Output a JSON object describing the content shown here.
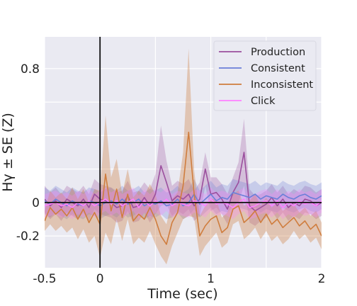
{
  "chart_data": {
    "type": "line",
    "xlabel": "Time (sec)",
    "ylabel": "Hγ ± SE (Z)",
    "xlim": [
      -0.5,
      2
    ],
    "ylim": [
      -0.39,
      0.99
    ],
    "xticks": [
      -0.5,
      0,
      1,
      2
    ],
    "xtick_labels": [
      "-0.5",
      "0",
      "1",
      "2"
    ],
    "xgrid": [
      -0.5,
      0,
      0.5,
      1,
      1.5,
      2
    ],
    "yticks": [
      -0.2,
      0,
      0.8
    ],
    "ytick_labels": [
      "-0.2",
      "0",
      "0.8"
    ],
    "ygrid": [
      -0.2,
      0,
      0.2,
      0.4,
      0.6,
      0.8
    ],
    "grid": true,
    "legend_position": "top-right",
    "vline_x": 0,
    "hline_y": 0,
    "x": [
      -0.5,
      -0.45,
      -0.4,
      -0.35,
      -0.3,
      -0.25,
      -0.2,
      -0.15,
      -0.1,
      -0.05,
      0,
      0.05,
      0.1,
      0.15,
      0.2,
      0.25,
      0.3,
      0.35,
      0.4,
      0.45,
      0.5,
      0.55,
      0.6,
      0.65,
      0.7,
      0.75,
      0.8,
      0.85,
      0.9,
      0.95,
      1,
      1.05,
      1.1,
      1.15,
      1.2,
      1.25,
      1.3,
      1.35,
      1.4,
      1.45,
      1.5,
      1.55,
      1.6,
      1.65,
      1.7,
      1.75,
      1.8,
      1.85,
      1.9,
      1.95,
      2
    ],
    "series": [
      {
        "name": "Production",
        "color": "#9B4F9E",
        "values": [
          0.02,
          -0.02,
          0.01,
          -0.03,
          0.02,
          0.0,
          -0.02,
          0.02,
          -0.03,
          0.05,
          0.02,
          0.01,
          0.0,
          -0.03,
          -0.02,
          0.04,
          -0.03,
          -0.02,
          0.03,
          -0.02,
          0.05,
          0.22,
          0.12,
          0.01,
          0.04,
          0.02,
          0.05,
          -0.02,
          0.02,
          0.2,
          0.05,
          0.06,
          0.02,
          -0.04,
          0.06,
          0.12,
          0.3,
          -0.02,
          -0.05,
          -0.03,
          -0.01,
          0.03,
          -0.02,
          0.02,
          -0.03,
          0.0,
          -0.02,
          0.02,
          0.01,
          -0.02,
          0.0
        ],
        "se": [
          0.08,
          0.08,
          0.08,
          0.08,
          0.08,
          0.08,
          0.08,
          0.08,
          0.08,
          0.09,
          0.09,
          0.09,
          0.09,
          0.09,
          0.09,
          0.09,
          0.09,
          0.09,
          0.09,
          0.1,
          0.12,
          0.24,
          0.13,
          0.09,
          0.09,
          0.09,
          0.09,
          0.09,
          0.1,
          0.1,
          0.1,
          0.09,
          0.09,
          0.09,
          0.09,
          0.12,
          0.2,
          0.1,
          0.09,
          0.08,
          0.08,
          0.08,
          0.08,
          0.08,
          0.08,
          0.08,
          0.08,
          0.08,
          0.08,
          0.08,
          0.08
        ]
      },
      {
        "name": "Consistent",
        "color": "#6A7FD8",
        "values": [
          0.01,
          -0.01,
          0.02,
          0.0,
          -0.02,
          0.01,
          -0.01,
          -0.02,
          0.01,
          0.0,
          -0.02,
          0.0,
          0.01,
          -0.01,
          0.02,
          -0.01,
          0.0,
          0.02,
          -0.02,
          0.0,
          -0.01,
          0.01,
          -0.02,
          -0.01,
          0.02,
          -0.02,
          0.0,
          0.05,
          -0.01,
          0.02,
          0.05,
          0.01,
          0.03,
          0.02,
          0.06,
          0.05,
          0.04,
          0.03,
          0.05,
          0.02,
          0.04,
          0.03,
          0.02,
          0.05,
          0.03,
          0.02,
          0.04,
          0.05,
          0.03,
          0.02,
          0.04
        ],
        "se": [
          0.08,
          0.08,
          0.08,
          0.08,
          0.08,
          0.08,
          0.08,
          0.08,
          0.08,
          0.08,
          0.08,
          0.08,
          0.08,
          0.08,
          0.08,
          0.08,
          0.08,
          0.08,
          0.08,
          0.08,
          0.08,
          0.08,
          0.08,
          0.08,
          0.08,
          0.08,
          0.08,
          0.09,
          0.08,
          0.08,
          0.08,
          0.08,
          0.08,
          0.08,
          0.08,
          0.08,
          0.08,
          0.08,
          0.08,
          0.08,
          0.08,
          0.08,
          0.08,
          0.08,
          0.08,
          0.08,
          0.08,
          0.08,
          0.08,
          0.08,
          0.08
        ]
      },
      {
        "name": "Inconsistent",
        "color": "#CF7D3E",
        "values": [
          -0.11,
          -0.03,
          -0.07,
          -0.04,
          -0.08,
          -0.03,
          -0.1,
          -0.04,
          -0.12,
          -0.06,
          -0.13,
          0.17,
          -0.05,
          0.08,
          -0.09,
          0.05,
          -0.11,
          -0.07,
          -0.1,
          -0.03,
          -0.1,
          -0.2,
          -0.25,
          -0.12,
          -0.06,
          0.1,
          0.42,
          0.05,
          -0.2,
          -0.14,
          -0.1,
          -0.08,
          -0.18,
          -0.15,
          -0.04,
          -0.02,
          -0.12,
          -0.09,
          -0.05,
          -0.12,
          -0.07,
          -0.13,
          -0.1,
          -0.15,
          -0.12,
          -0.09,
          -0.14,
          -0.11,
          -0.16,
          -0.13,
          -0.2
        ],
        "se": [
          0.06,
          0.1,
          0.1,
          0.1,
          0.1,
          0.12,
          0.12,
          0.12,
          0.12,
          0.14,
          0.2,
          0.35,
          0.2,
          0.18,
          0.14,
          0.15,
          0.14,
          0.14,
          0.14,
          0.14,
          0.15,
          0.12,
          0.12,
          0.14,
          0.12,
          0.2,
          0.5,
          0.14,
          0.12,
          0.12,
          0.12,
          0.1,
          0.09,
          0.09,
          0.09,
          0.09,
          0.1,
          0.1,
          0.1,
          0.1,
          0.1,
          0.1,
          0.1,
          0.1,
          0.1,
          0.08,
          0.08,
          0.08,
          0.08,
          0.08,
          0.08
        ]
      },
      {
        "name": "Click",
        "color": "#FF80FF",
        "values": [
          -0.02,
          -0.01,
          0.0,
          -0.02,
          -0.01,
          -0.03,
          0.0,
          -0.02,
          0.01,
          -0.02,
          0.0,
          0.02,
          -0.01,
          0.01,
          -0.02,
          0.0,
          0.02,
          -0.03,
          0.01,
          -0.02,
          0.01,
          -0.01,
          0.02,
          -0.02,
          0.0,
          -0.01,
          -0.02,
          0.01,
          0.0,
          -0.02,
          0.02,
          -0.01,
          0.0,
          -0.01,
          -0.03,
          0.0,
          0.02,
          -0.03,
          -0.02,
          0.0,
          0.01,
          -0.02,
          0.01,
          -0.03,
          0.0,
          -0.02,
          0.01,
          -0.01,
          0.0,
          -0.02,
          0.01
        ],
        "se": [
          0.07,
          0.07,
          0.07,
          0.07,
          0.07,
          0.07,
          0.07,
          0.07,
          0.07,
          0.07,
          0.07,
          0.07,
          0.07,
          0.07,
          0.07,
          0.07,
          0.07,
          0.07,
          0.07,
          0.07,
          0.07,
          0.07,
          0.07,
          0.07,
          0.07,
          0.07,
          0.07,
          0.07,
          0.07,
          0.07,
          0.07,
          0.07,
          0.07,
          0.07,
          0.07,
          0.07,
          0.07,
          0.07,
          0.07,
          0.07,
          0.07,
          0.07,
          0.07,
          0.07,
          0.07,
          0.07,
          0.07,
          0.07,
          0.07,
          0.07,
          0.07
        ]
      }
    ]
  }
}
